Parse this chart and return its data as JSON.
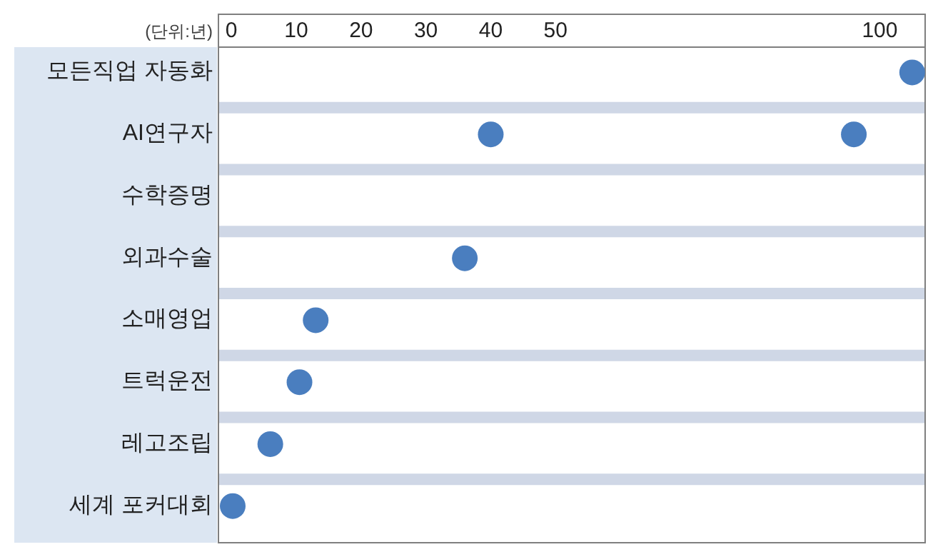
{
  "chart_data": {
    "type": "scatter",
    "xlabel": "(단위:년)",
    "categories": [
      "모든직업 자동화",
      "AI연구자",
      "수학증명",
      "외과수술",
      "소매영업",
      "트럭운전",
      "레고조립",
      "세계 포커대회"
    ],
    "series": [
      {
        "color": "#4a7ebf",
        "values": [
          105,
          40,
          null,
          36,
          13,
          10.5,
          6,
          0.2
        ]
      },
      {
        "color": "#4a7ebf",
        "values": [
          null,
          96,
          null,
          null,
          null,
          null,
          null,
          null
        ]
      }
    ],
    "xlim": [
      -2,
      107
    ],
    "xticks": [
      0,
      10,
      20,
      30,
      40,
      50,
      100
    ],
    "marker": "circle",
    "orientation": "horizontal"
  }
}
